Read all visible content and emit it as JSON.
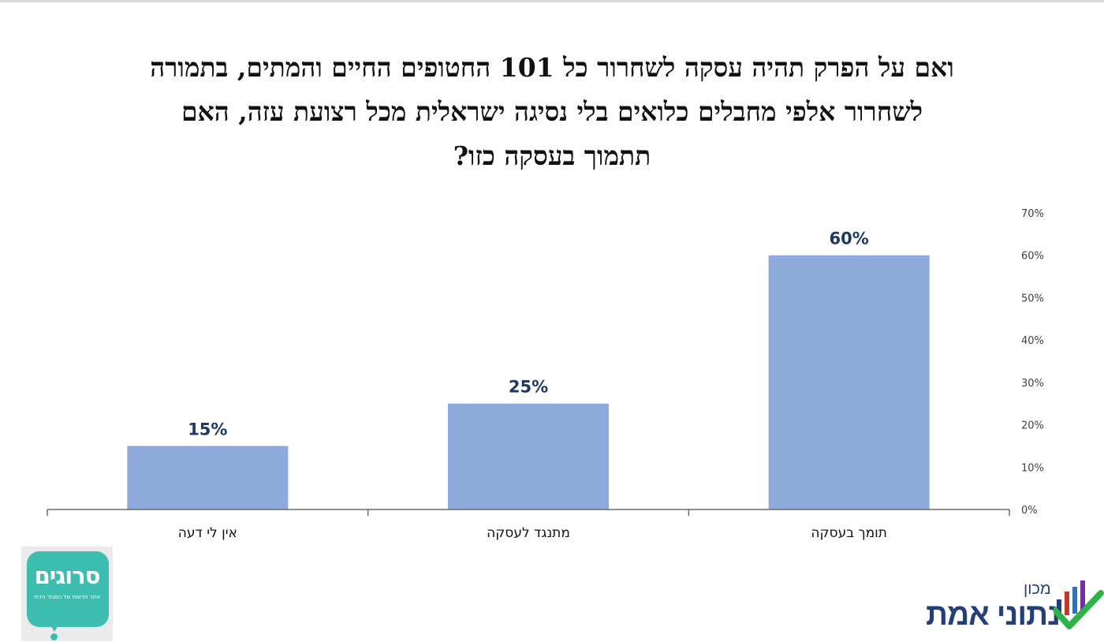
{
  "title_lines": [
    "ואם על הפרק תהיה עסקה לשחרור כל 101 החטופים החיים והמתים, בתמורה",
    "לשחרור אלפי מחבלים כלואים בלי נסיגה ישראלית מכל רצועת עזה, האם",
    "תתמוך בעסקה כזו?"
  ],
  "chart_data": {
    "type": "bar",
    "title": "ואם על הפרק תהיה עסקה לשחרור כל 101 החטופים החיים והמתים, בתמורה לשחרור אלפי מחבלים כלואים בלי נסיגה ישראלית מכל רצועת עזה, האם תתמוך בעסקה כזו?",
    "categories": [
      "אין לי דעה",
      "מתנגד לעסקה",
      "תומך בעסקה"
    ],
    "values": [
      15,
      25,
      60
    ],
    "value_labels": [
      "15%",
      "25%",
      "60%"
    ],
    "ylim": [
      0,
      70
    ],
    "yticks": [
      "0%",
      "10%",
      "20%",
      "30%",
      "40%",
      "50%",
      "60%",
      "70%"
    ],
    "y_axis_side": "right",
    "grid": false,
    "xlabel": "",
    "ylabel": "",
    "bar_color": "#8eaadb",
    "label_color": "#1f3864"
  },
  "logos": {
    "left_name": "סרוגים",
    "left_tagline": "אתר חדשות של המגזר הדתי",
    "right_small": "מכון",
    "right_big": "נתוני אמת",
    "left_color": "#3cbdb0",
    "right_color": "#243f7a"
  }
}
